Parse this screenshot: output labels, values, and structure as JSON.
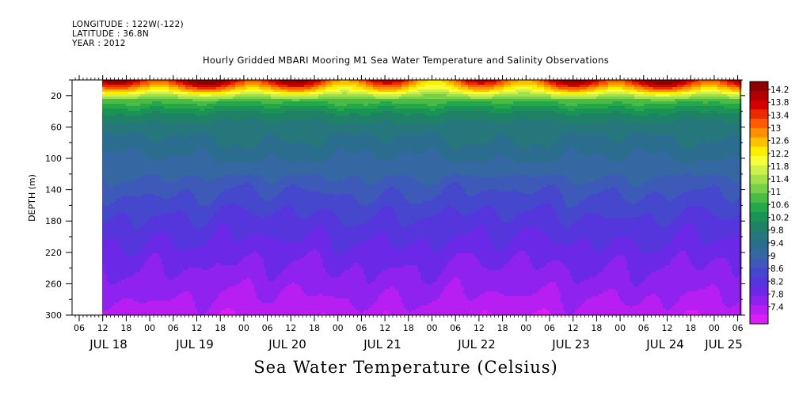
{
  "header": {
    "longitude": "LONGITUDE : 122W(-122)",
    "latitude": "LATITUDE : 36.8N",
    "year": "YEAR : 2012"
  },
  "chart_data": {
    "type": "heatmap",
    "title": "Hourly Gridded MBARI Mooring M1 Sea Water Temperature and Salinity Observations",
    "variable_label": "Sea Water Temperature (Celsius)",
    "ylabel": "DEPTH (m)",
    "y_axis": {
      "reversed": true,
      "ylim": [
        0,
        300
      ],
      "ticks": [
        20,
        60,
        100,
        140,
        180,
        220,
        260,
        300
      ]
    },
    "x_axis": {
      "hour_ticks": [
        "06",
        "12",
        "18",
        "00",
        "06",
        "12",
        "18",
        "00",
        "06",
        "12",
        "18",
        "00",
        "06",
        "12",
        "18",
        "00",
        "06",
        "12",
        "18",
        "00",
        "06",
        "12",
        "18",
        "00",
        "06",
        "12",
        "18",
        "00",
        "06",
        "12",
        "18",
        "00"
      ],
      "day_labels": [
        "JUL 18",
        "JUL 19",
        "JUL 20",
        "JUL 21",
        "JUL 22",
        "JUL 23",
        "JUL 24",
        "JUL 25"
      ],
      "data_start": "JUL 18 12:00",
      "data_end": "JUL 25 ~06:00"
    },
    "colorbar": {
      "labels": [
        "14.2",
        "13.8",
        "13.4",
        "13",
        "12.6",
        "12.2",
        "11.8",
        "11.4",
        "11",
        "10.6",
        "10.2",
        "9.8",
        "9.4",
        "9",
        "8.6",
        "8.2",
        "7.8",
        "7.4"
      ],
      "colors": [
        "#8b0000",
        "#b00000",
        "#d40000",
        "#ec2a00",
        "#ff5a00",
        "#ff9000",
        "#ffc000",
        "#ffee00",
        "#f5ff3a",
        "#cdf04a",
        "#a4e04a",
        "#78cf48",
        "#4cbb45",
        "#24a84a",
        "#1a9454",
        "#1f8266",
        "#25777c",
        "#2b6d8e",
        "#3568a3",
        "#3e5ab8",
        "#4548cc",
        "#5535dc",
        "#6b28e6",
        "#8f22ee",
        "#b71ef2",
        "#da1ef8"
      ],
      "range": [
        7.4,
        14.4
      ]
    },
    "profile": {
      "depths": [
        0,
        10,
        18,
        26,
        34,
        45,
        60,
        80,
        100,
        120,
        140,
        160,
        180,
        200,
        230,
        260,
        280,
        300
      ],
      "temps": [
        13.2,
        12.4,
        11.6,
        11.0,
        10.6,
        10.2,
        9.95,
        9.75,
        9.55,
        9.3,
        9.05,
        8.85,
        8.65,
        8.5,
        8.25,
        8.05,
        7.9,
        7.75
      ]
    }
  }
}
